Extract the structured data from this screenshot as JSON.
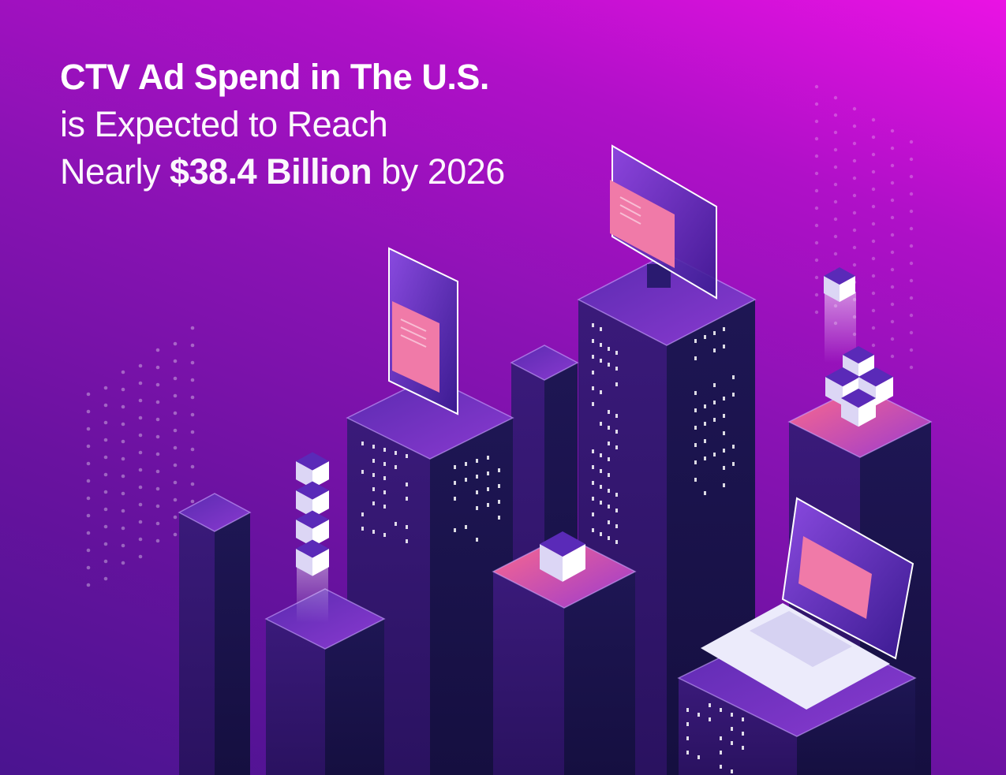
{
  "headline": {
    "line1": "CTV Ad Spend in The U.S.",
    "line2": "is Expected to Reach",
    "line3_prefix": "Nearly ",
    "line3_amount": "$38.4 Billion",
    "line3_suffix": " by 2026"
  },
  "illustration": {
    "icons": [
      "smartphone-icon",
      "monitor-icon",
      "laptop-icon",
      "cube-icon"
    ],
    "colors": {
      "background_top": "#ea12e4",
      "background_bottom": "#4a1490",
      "pillar_dark": "#1c1450",
      "pillar_mid": "#3a1a78",
      "screen_pink": "#f07aa8",
      "accent_coral": "#ff6a8a"
    }
  }
}
